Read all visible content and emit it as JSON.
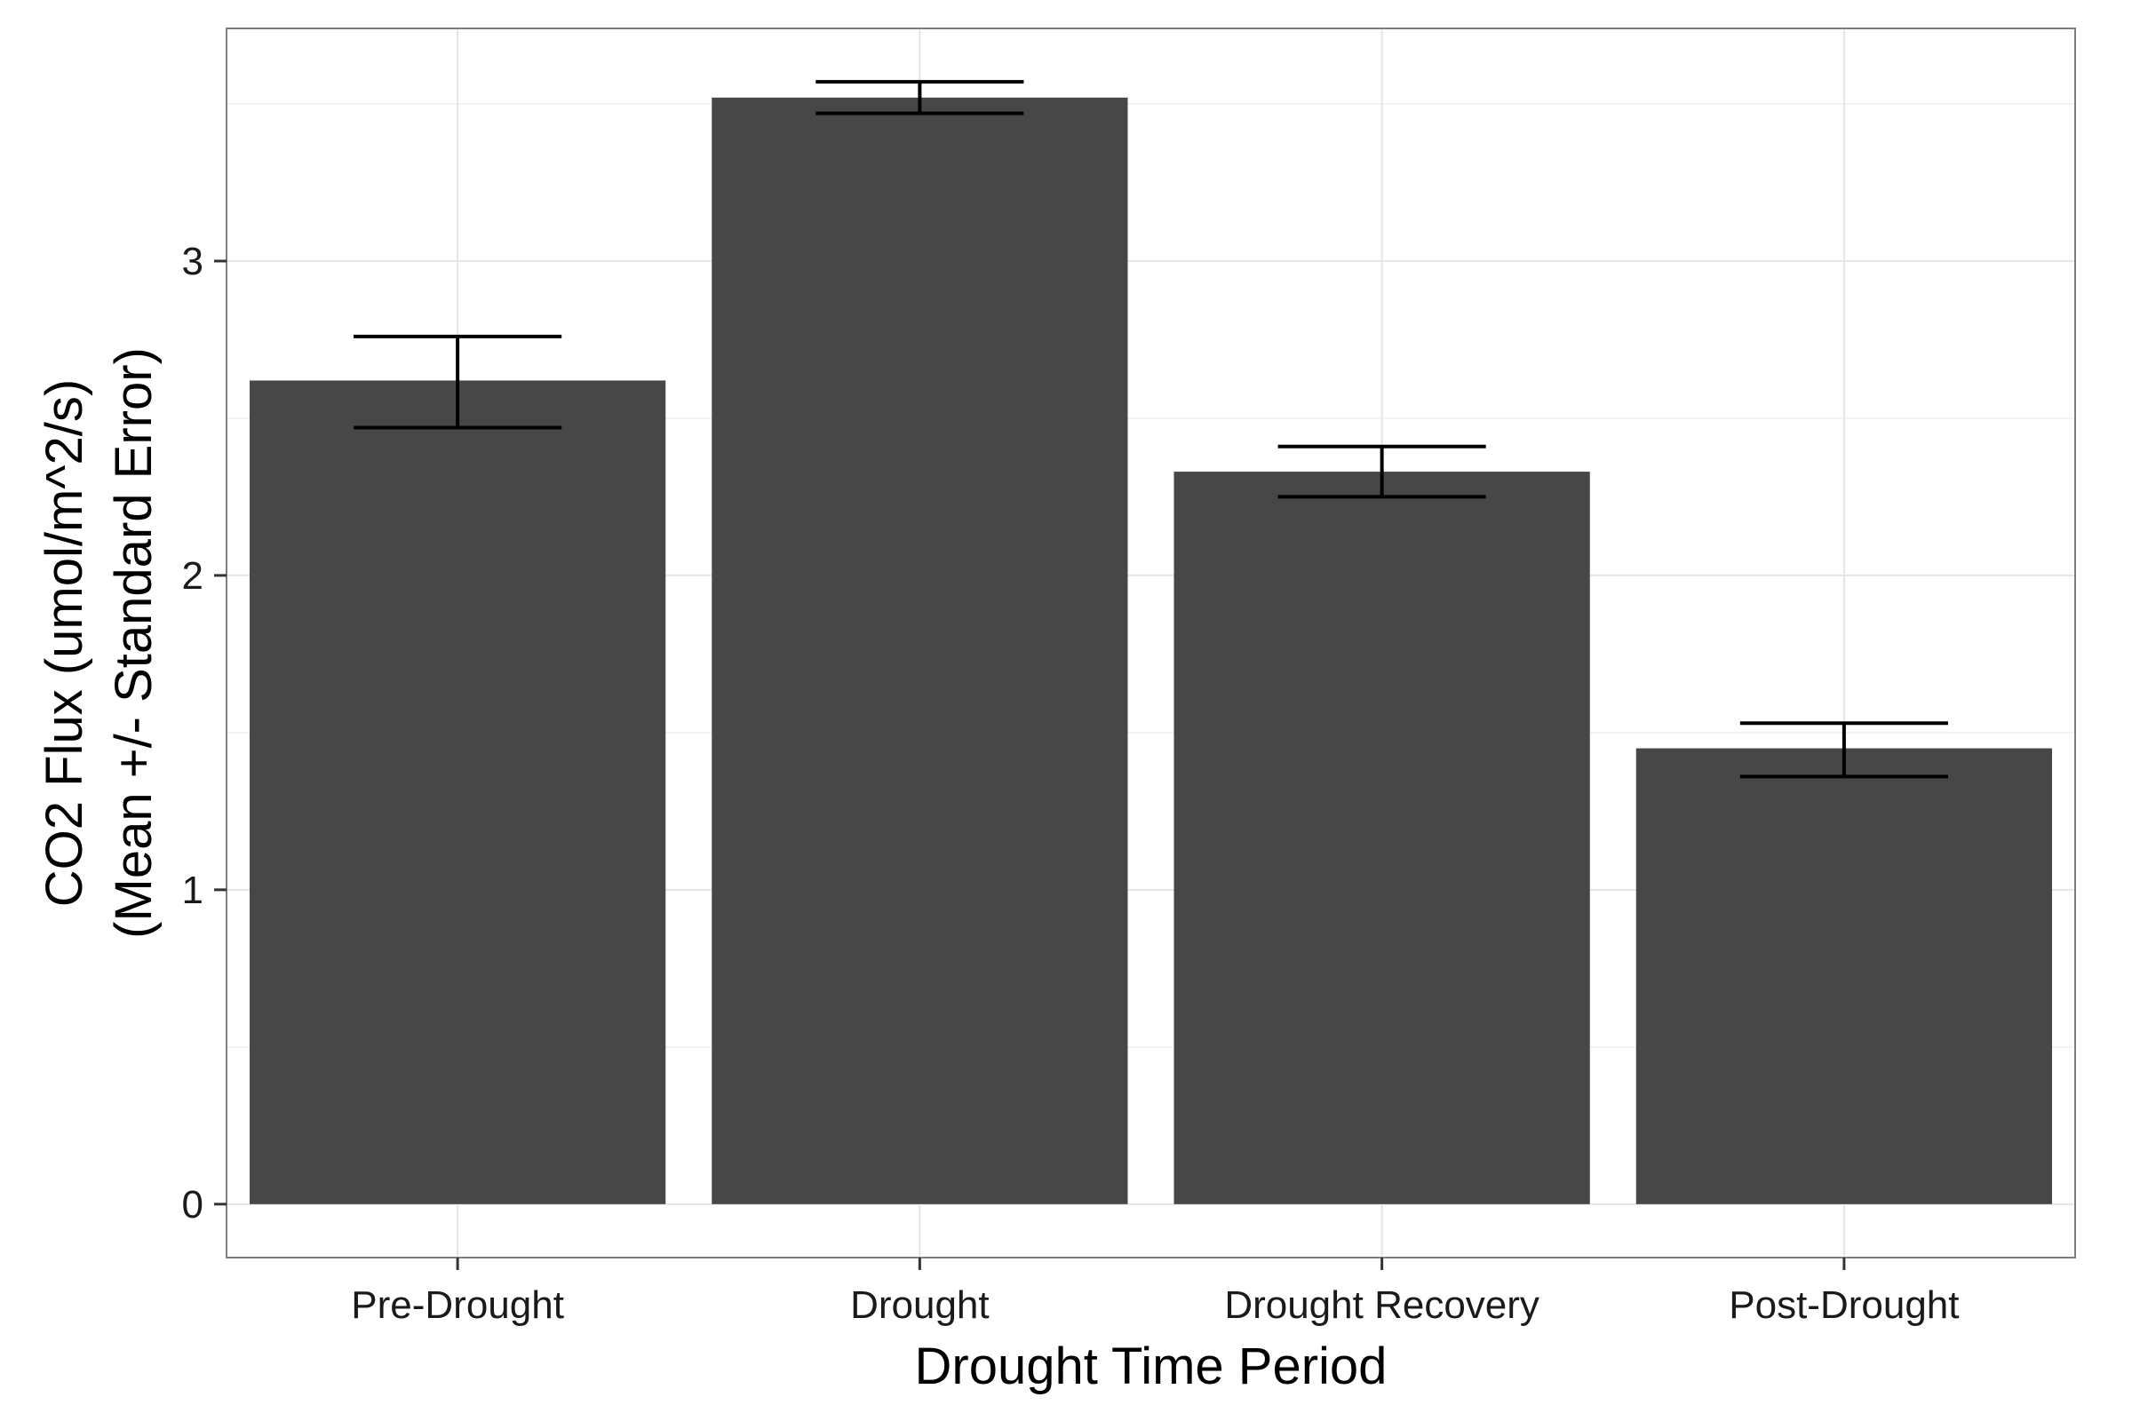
{
  "chart_data": {
    "type": "bar",
    "categories": [
      "Pre-Drought",
      "Drought",
      "Drought Recovery",
      "Post-Drought"
    ],
    "values": [
      2.62,
      3.52,
      2.33,
      1.45
    ],
    "error_low": [
      2.47,
      3.47,
      2.25,
      1.36
    ],
    "error_high": [
      2.76,
      3.57,
      2.41,
      1.53
    ],
    "xlabel": "Drought Time Period",
    "ylabel_line1": "CO2 Flux (umol/m^2/s)",
    "ylabel_line2": "(Mean +/- Standard Error)",
    "ylim": [
      -0.17,
      3.74
    ],
    "yticks": [
      0,
      1,
      2,
      3
    ],
    "grid": true,
    "legend": "none",
    "bar_color": "#474747",
    "errorbar_color": "#000000",
    "grid_color": "#e5e5e5",
    "panel_border_color": "#7f7f7f"
  }
}
